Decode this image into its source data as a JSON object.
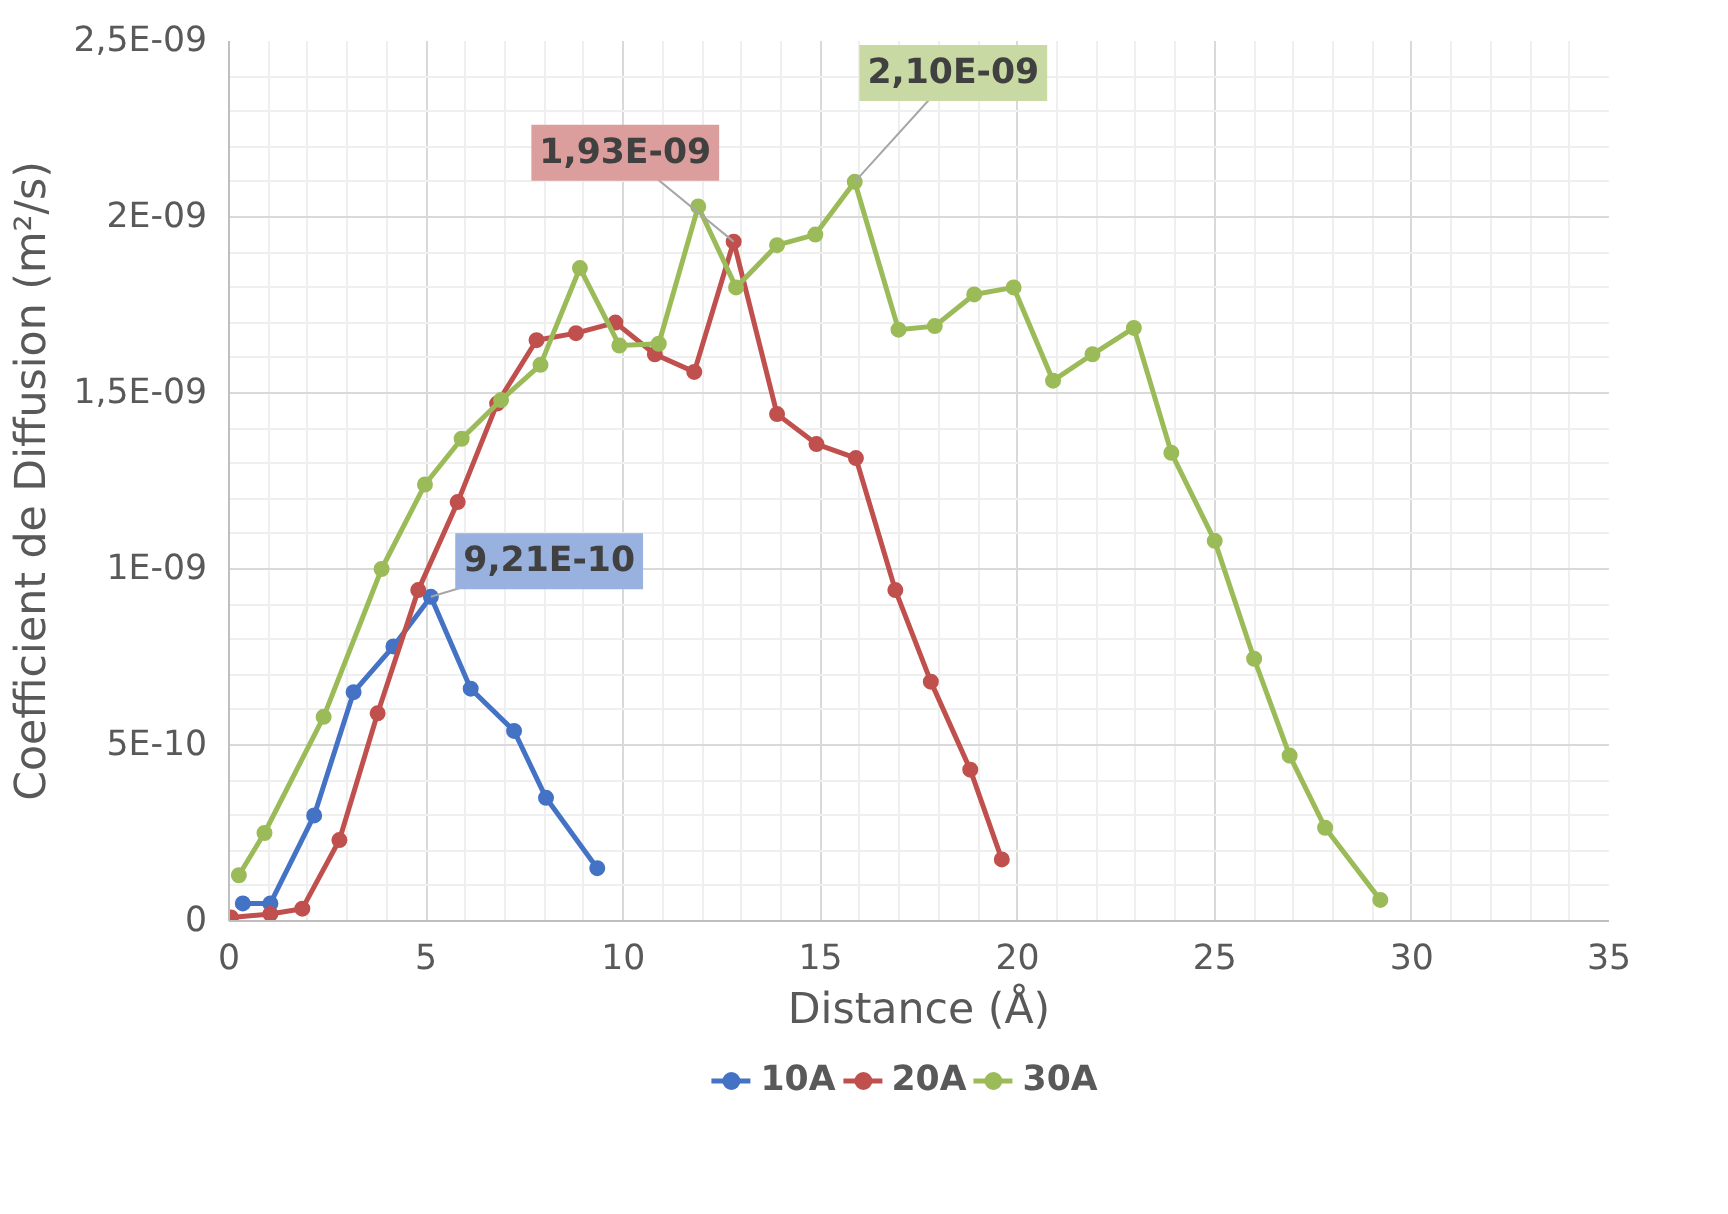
{
  "chart_data": {
    "type": "line",
    "xlabel": "Distance (Å)",
    "ylabel": "Coefficient de Diffusion (m²/s)",
    "xlim": [
      0,
      35
    ],
    "xticks": [
      0,
      5,
      10,
      15,
      20,
      25,
      30,
      35
    ],
    "ylim": [
      0,
      2.5e-09
    ],
    "yticks": [
      {
        "value": 0,
        "label": "0"
      },
      {
        "value": 5e-10,
        "label": "5E-10"
      },
      {
        "value": 1e-09,
        "label": "1E-09"
      },
      {
        "value": 1.5e-09,
        "label": "1,5E-09"
      },
      {
        "value": 2e-09,
        "label": "2E-09"
      },
      {
        "value": 2.5e-09,
        "label": "2,5E-09"
      }
    ],
    "grid": true,
    "legend": "bottom",
    "marker": "circle",
    "line_style": "solid",
    "series": [
      {
        "name": "10A",
        "color": "#4472c4",
        "x": [
          0.35,
          1.05,
          2.16,
          3.16,
          4.17,
          5.12,
          6.13,
          7.23,
          8.04,
          9.34
        ],
        "values": [
          5e-11,
          5e-11,
          3e-10,
          6.5e-10,
          7.8e-10,
          9.21e-10,
          6.6e-10,
          5.4e-10,
          3.5e-10,
          1.5e-10
        ]
      },
      {
        "name": "20A",
        "color": "#c0504d",
        "x": [
          0.05,
          1.05,
          1.86,
          2.8,
          3.77,
          4.8,
          5.8,
          6.8,
          7.8,
          8.8,
          9.8,
          10.8,
          11.8,
          12.8,
          13.9,
          14.9,
          15.9,
          16.9,
          17.8,
          18.8,
          19.6
        ],
        "values": [
          1e-11,
          2e-11,
          3.5e-11,
          2.3e-10,
          5.9e-10,
          9.4e-10,
          1.19e-09,
          1.47e-09,
          1.65e-09,
          1.67e-09,
          1.7e-09,
          1.61e-09,
          1.56e-09,
          1.93e-09,
          1.44e-09,
          1.355e-09,
          1.315e-09,
          9.4e-10,
          6.8e-10,
          4.3e-10,
          1.75e-10
        ]
      },
      {
        "name": "30A",
        "color": "#9bbb59",
        "x": [
          0.25,
          0.9,
          2.4,
          3.87,
          4.97,
          5.9,
          6.9,
          7.9,
          8.9,
          9.9,
          10.9,
          11.9,
          12.86,
          13.9,
          14.87,
          15.87,
          16.98,
          17.9,
          18.9,
          19.9,
          20.9,
          21.9,
          22.95,
          23.9,
          25.0,
          26.0,
          26.9,
          27.8,
          29.2
        ],
        "values": [
          1.3e-10,
          2.5e-10,
          5.8e-10,
          1e-09,
          1.24e-09,
          1.37e-09,
          1.48e-09,
          1.58e-09,
          1.855e-09,
          1.635e-09,
          1.64e-09,
          2.03e-09,
          1.8e-09,
          1.92e-09,
          1.95e-09,
          2.1e-09,
          1.68e-09,
          1.69e-09,
          1.78e-09,
          1.8e-09,
          1.535e-09,
          1.61e-09,
          1.685e-09,
          1.33e-09,
          1.08e-09,
          7.45e-10,
          4.7e-10,
          2.65e-10,
          6e-11
        ]
      }
    ],
    "annotations": [
      {
        "text": "9,21E-10",
        "x": 5.12,
        "y": 9.21e-10
      },
      {
        "text": "1,93E-09",
        "x": 12.8,
        "y": 1.93e-09
      },
      {
        "text": "2,10E-09",
        "x": 15.87,
        "y": 2.1e-09
      }
    ]
  }
}
